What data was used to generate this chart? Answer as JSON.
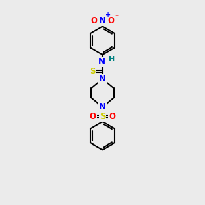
{
  "bg_color": "#ebebeb",
  "atom_colors": {
    "C": "#000000",
    "N": "#0000ff",
    "O": "#ff0000",
    "S_thio": "#cccc00",
    "S_sulfonyl": "#cccc00",
    "H": "#008080"
  },
  "bond_color": "#000000",
  "bond_width": 1.5,
  "figsize": [
    3.0,
    3.0
  ],
  "dpi": 100,
  "xlim": [
    0,
    10
  ],
  "ylim": [
    0,
    15
  ]
}
